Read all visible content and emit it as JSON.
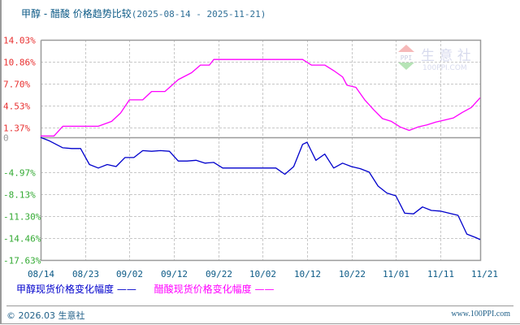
{
  "header": {
    "title": "甲醇 - 醋酸 价格趋势比较",
    "date_range": "(2025-08-14 - 2025-11-21)"
  },
  "watermark": {
    "brand": "生 意 社",
    "site": "100PPI.COM",
    "badge": "PPI"
  },
  "legend": {
    "series1_label": "甲醇现货价格变化幅度",
    "series2_label": "醋酸现货价格变化幅度"
  },
  "footer": {
    "copyright": "© 2026.03 生意社",
    "url": "www.100PPI.com"
  },
  "colors": {
    "methanol": "#0000cc",
    "acetic_acid": "#ff00ff",
    "positive_tick": "#e83030",
    "negative_tick": "#33aa33",
    "zero_tick": "#999999",
    "x_tick": "#0c5a86",
    "grid": "#c8c8c8",
    "axis": "#9a9a9a"
  },
  "chart_data": {
    "type": "line",
    "title": "甲醇 - 醋酸 价格趋势比较 (2025-08-14 - 2025-11-21)",
    "xlabel": "",
    "ylabel": "",
    "ylim": [
      -17.63,
      14.03
    ],
    "y_ticks": [
      "14.03%",
      "10.86%",
      "7.70%",
      "4.53%",
      "1.37%",
      "0",
      "-4.97%",
      "-8.13%",
      "-11.30%",
      "-14.46%",
      "-17.63%"
    ],
    "y_tick_values": [
      14.03,
      10.86,
      7.7,
      4.53,
      1.37,
      0,
      -4.97,
      -8.13,
      -11.3,
      -14.46,
      -17.63
    ],
    "x_ticks": [
      "08/14",
      "08/23",
      "09/02",
      "09/12",
      "09/22",
      "10/02",
      "10/12",
      "10/22",
      "11/01",
      "11/11",
      "11/21"
    ],
    "grid": true,
    "legend_position": "bottom",
    "series": [
      {
        "name": "甲醇现货价格变化幅度",
        "color": "#0000cc",
        "x": [
          "08/14",
          "08/16",
          "08/19",
          "08/21",
          "08/23",
          "08/25",
          "08/27",
          "08/29",
          "08/31",
          "09/02",
          "09/04",
          "09/06",
          "09/08",
          "09/10",
          "09/12",
          "09/14",
          "09/16",
          "09/18",
          "09/20",
          "09/22",
          "09/24",
          "09/26",
          "09/28",
          "09/30",
          "10/02",
          "10/04",
          "10/06",
          "10/08",
          "10/10",
          "10/12",
          "10/13",
          "10/15",
          "10/17",
          "10/19",
          "10/21",
          "10/23",
          "10/25",
          "10/27",
          "10/29",
          "10/31",
          "11/02",
          "11/04",
          "11/06",
          "11/08",
          "11/10",
          "11/12",
          "11/14",
          "11/16",
          "11/18",
          "11/20",
          "11/21"
        ],
        "values": [
          0.0,
          -0.5,
          -1.5,
          -1.6,
          -1.6,
          -3.9,
          -4.4,
          -3.9,
          -4.2,
          -2.9,
          -2.9,
          -1.9,
          -2.0,
          -1.9,
          -2.0,
          -3.4,
          -3.4,
          -3.3,
          -3.7,
          -3.6,
          -4.4,
          -4.4,
          -4.4,
          -4.4,
          -4.4,
          -4.4,
          -4.4,
          -5.3,
          -4.2,
          -1.0,
          -0.7,
          -3.3,
          -2.4,
          -4.4,
          -3.7,
          -4.2,
          -4.5,
          -5.0,
          -7.0,
          -8.0,
          -8.4,
          -10.9,
          -11.0,
          -10.0,
          -10.5,
          -10.6,
          -10.9,
          -11.2,
          -13.9,
          -14.4,
          -14.7
        ]
      },
      {
        "name": "醋酸现货价格变化幅度",
        "color": "#ff00ff",
        "x": [
          "08/14",
          "08/17",
          "08/19",
          "08/21",
          "08/23",
          "08/27",
          "08/30",
          "09/01",
          "09/03",
          "09/06",
          "09/08",
          "09/11",
          "09/14",
          "09/17",
          "09/19",
          "09/21",
          "09/22",
          "10/02",
          "10/12",
          "10/14",
          "10/17",
          "10/19",
          "10/21",
          "10/22",
          "10/24",
          "10/26",
          "10/28",
          "10/30",
          "11/01",
          "11/03",
          "11/05",
          "11/07",
          "11/09",
          "11/11",
          "11/13",
          "11/15",
          "11/17",
          "11/19",
          "11/21"
        ],
        "values": [
          0.2,
          0.2,
          1.6,
          1.6,
          1.6,
          1.6,
          2.3,
          3.5,
          5.4,
          5.4,
          6.6,
          6.6,
          8.3,
          9.3,
          10.4,
          10.4,
          11.2,
          11.2,
          11.2,
          10.4,
          10.4,
          9.6,
          8.7,
          7.5,
          7.2,
          5.4,
          4.0,
          2.7,
          2.3,
          1.5,
          1.0,
          1.5,
          1.8,
          2.2,
          2.5,
          2.8,
          3.6,
          4.3,
          5.7
        ]
      }
    ]
  }
}
